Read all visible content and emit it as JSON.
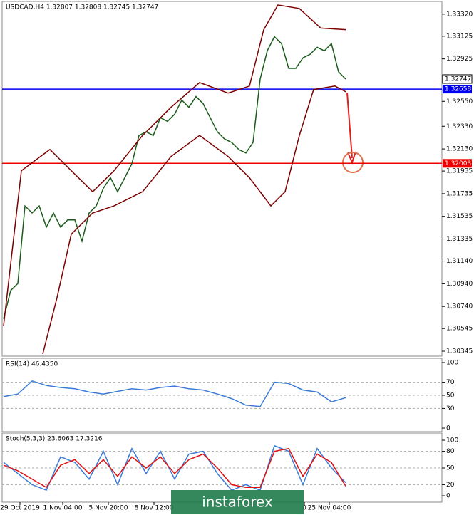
{
  "chart_data": [
    {
      "type": "line",
      "title": "USDCAD,H4  1.32807 1.32808 1.32745 1.32747",
      "xlim": [
        -0.2,
        61.5
      ],
      "ylim": [
        1.30301,
        1.33432
      ],
      "yticks": [
        {
          "value": 1.3332,
          "label": "1.33320"
        },
        {
          "value": 1.33125,
          "label": "1.33125"
        },
        {
          "value": 1.32925,
          "label": "1.32925"
        },
        {
          "value": 1.3255,
          "label": "1.32550"
        },
        {
          "value": 1.3233,
          "label": "1.32330"
        },
        {
          "value": 1.3213,
          "label": "1.32130"
        },
        {
          "value": 1.31935,
          "label": "1.31935"
        },
        {
          "value": 1.31735,
          "label": "1.31735"
        },
        {
          "value": 1.31535,
          "label": "1.31535"
        },
        {
          "value": 1.31335,
          "label": "1.31335"
        },
        {
          "value": 1.3114,
          "label": "1.31140"
        },
        {
          "value": 1.3094,
          "label": "1.30940"
        },
        {
          "value": 1.3074,
          "label": "1.30740"
        },
        {
          "value": 1.30545,
          "label": "1.30545"
        },
        {
          "value": 1.30345,
          "label": "1.30345"
        }
      ],
      "xticks": [
        {
          "value": 2.3,
          "label": "29 Oct 2019"
        },
        {
          "value": 8.3,
          "label": "1 Nov 04:00"
        },
        {
          "value": 14.7,
          "label": "5 Nov 20:00"
        },
        {
          "value": 21.1,
          "label": "8 Nov 12:00"
        },
        {
          "value": 42.2,
          "label": "0"
        },
        {
          "value": 45.7,
          "label": "25 Nov 04:00"
        }
      ],
      "current": {
        "value": 1.32747,
        "label": "1.32747"
      },
      "levels": [
        {
          "value": 1.32658,
          "label": "1.32658",
          "color": "#0000ee"
        },
        {
          "value": 1.32003,
          "label": "1.32003",
          "color": "#ee0000"
        }
      ],
      "series": [
        {
          "color": "#1a5c1a",
          "x": [
            0,
            1,
            2,
            3,
            4,
            5,
            6,
            7,
            8,
            9,
            10,
            11,
            12,
            13,
            14,
            15,
            16,
            17,
            18,
            19,
            20,
            21,
            22,
            23,
            24,
            25,
            26,
            27,
            28,
            29,
            30,
            31,
            32,
            33,
            34,
            35,
            36,
            37,
            38,
            39,
            40,
            41,
            42,
            43,
            44,
            45,
            46,
            47,
            48
          ],
          "values": [
            1.30631,
            1.3088,
            1.30942,
            1.31627,
            1.31565,
            1.31627,
            1.3144,
            1.31565,
            1.3144,
            1.31503,
            1.31503,
            1.31316,
            1.31565,
            1.31627,
            1.31783,
            1.31876,
            1.31752,
            1.31876,
            1.32,
            1.32249,
            1.32281,
            1.32249,
            1.32405,
            1.32374,
            1.32436,
            1.32561,
            1.32498,
            1.32592,
            1.3253,
            1.32405,
            1.32281,
            1.32218,
            1.32187,
            1.32125,
            1.32094,
            1.32187,
            1.32747,
            1.32996,
            1.33121,
            1.33059,
            1.32841,
            1.32841,
            1.32934,
            1.32965,
            1.33027,
            1.32996,
            1.33059,
            1.3281,
            1.32747
          ]
        },
        {
          "color": "#7b0000",
          "x": [
            0,
            2.5,
            6.5,
            9.5,
            12.5,
            15.5,
            19.5,
            23.5,
            27.5,
            31.5,
            34.5,
            36.5,
            38.5,
            41.5,
            44.5,
            48
          ],
          "values": [
            1.30569,
            1.31938,
            1.32125,
            1.31938,
            1.31752,
            1.31938,
            1.32249,
            1.32498,
            1.32716,
            1.32623,
            1.32685,
            1.33183,
            1.33401,
            1.3337,
            1.33197,
            1.33183
          ]
        },
        {
          "color": "#7b0000",
          "x": [
            5.5,
            7.5,
            9.5,
            12.5,
            15.5,
            19.5,
            23.5,
            27.5,
            31.5,
            34.5,
            37.5,
            39.5,
            41.5,
            43.5,
            46.5,
            48
          ],
          "values": [
            1.3032,
            1.30818,
            1.31378,
            1.31565,
            1.31627,
            1.31752,
            1.32063,
            1.32249,
            1.32063,
            1.31876,
            1.31627,
            1.31752,
            1.32249,
            1.32654,
            1.32685,
            1.32635
          ]
        }
      ]
    },
    {
      "type": "line",
      "title": "RSI(14) 46.4350",
      "xlim": [
        -0.2,
        61.5
      ],
      "ylim": [
        -5.4,
        106.5
      ],
      "yticks": [
        100,
        70,
        50,
        30,
        0
      ],
      "levels": [
        70,
        50,
        30
      ],
      "series": [
        {
          "color": "#3a7ad8",
          "x": [
            0,
            2,
            4,
            6,
            8,
            10,
            12,
            14,
            16,
            18,
            20,
            22,
            24,
            26,
            28,
            30,
            32,
            34,
            36,
            38,
            40,
            42,
            44,
            46,
            48
          ],
          "values": [
            48,
            52,
            72,
            65,
            62,
            60,
            55,
            52,
            56,
            60,
            58,
            62,
            64,
            60,
            58,
            52,
            45,
            35,
            33,
            70,
            68,
            58,
            55,
            40,
            46.435
          ]
        }
      ]
    },
    {
      "type": "line",
      "title": "Stoch(5,3,3) 23.6063 17.3216",
      "xlim": [
        -0.2,
        61.5
      ],
      "ylim": [
        -11.5,
        112.8
      ],
      "yticks": [
        100,
        80,
        50,
        20,
        0
      ],
      "levels": [
        80,
        50,
        20
      ],
      "series": [
        {
          "color": "#3a7ad8",
          "x": [
            0,
            2,
            4,
            6,
            8,
            10,
            12,
            14,
            16,
            18,
            20,
            22,
            24,
            26,
            28,
            30,
            32,
            34,
            36,
            38,
            40,
            42,
            44,
            46,
            48
          ],
          "values": [
            60,
            40,
            20,
            10,
            70,
            60,
            30,
            80,
            20,
            85,
            40,
            80,
            30,
            75,
            80,
            40,
            10,
            20,
            10,
            90,
            80,
            20,
            85,
            50,
            23.6063
          ]
        },
        {
          "color": "#e01010",
          "x": [
            0,
            2,
            4,
            6,
            8,
            10,
            12,
            14,
            16,
            18,
            20,
            22,
            24,
            26,
            28,
            30,
            32,
            34,
            36,
            38,
            40,
            42,
            44,
            46,
            48
          ],
          "values": [
            55,
            45,
            30,
            15,
            55,
            65,
            40,
            65,
            35,
            70,
            50,
            70,
            40,
            65,
            75,
            50,
            20,
            15,
            15,
            80,
            85,
            35,
            75,
            60,
            17.3216
          ]
        }
      ]
    }
  ],
  "watermark": "instaforex"
}
